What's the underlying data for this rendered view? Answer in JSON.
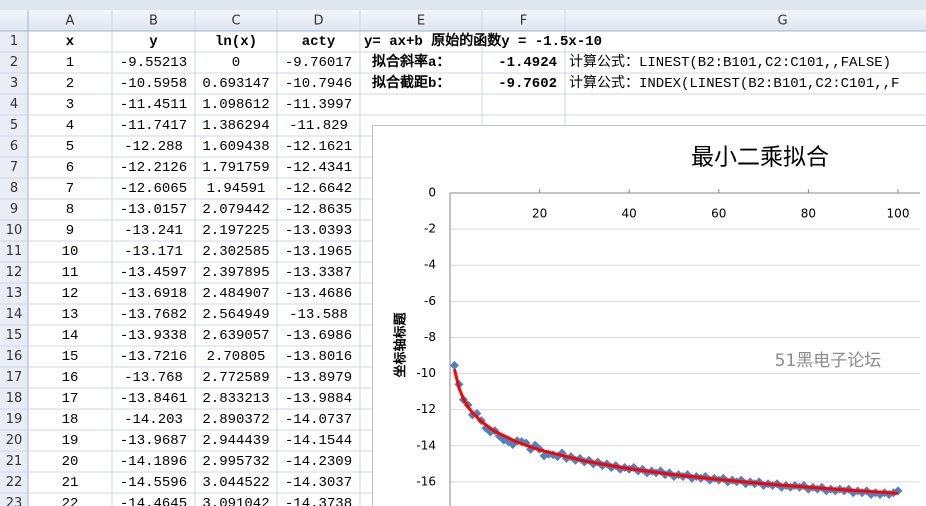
{
  "spreadsheet": {
    "columns": [
      "A",
      "B",
      "C",
      "D",
      "E",
      "F",
      "G"
    ],
    "row_numbers": [
      "1",
      "2",
      "3",
      "4",
      "5",
      "6",
      "7",
      "8",
      "9",
      "10",
      "11",
      "12",
      "13",
      "14",
      "15",
      "16",
      "17",
      "18",
      "19",
      "20",
      "21",
      "22",
      "23"
    ],
    "rows": [
      [
        "x",
        "y",
        "ln(x)",
        "acty"
      ],
      [
        "1",
        "-9.55213",
        "0",
        "-9.76017"
      ],
      [
        "2",
        "-10.5958",
        "0.693147",
        "-10.7946"
      ],
      [
        "3",
        "-11.4511",
        "1.098612",
        "-11.3997"
      ],
      [
        "4",
        "-11.7417",
        "1.386294",
        "-11.829"
      ],
      [
        "5",
        "-12.288",
        "1.609438",
        "-12.1621"
      ],
      [
        "6",
        "-12.2126",
        "1.791759",
        "-12.4341"
      ],
      [
        "7",
        "-12.6065",
        "1.94591",
        "-12.6642"
      ],
      [
        "8",
        "-13.0157",
        "2.079442",
        "-12.8635"
      ],
      [
        "9",
        "-13.241",
        "2.197225",
        "-13.0393"
      ],
      [
        "10",
        "-13.171",
        "2.302585",
        "-13.1965"
      ],
      [
        "11",
        "-13.4597",
        "2.397895",
        "-13.3387"
      ],
      [
        "12",
        "-13.6918",
        "2.484907",
        "-13.4686"
      ],
      [
        "13",
        "-13.7682",
        "2.564949",
        "-13.588"
      ],
      [
        "14",
        "-13.9338",
        "2.639057",
        "-13.6986"
      ],
      [
        "15",
        "-13.7216",
        "2.70805",
        "-13.8016"
      ],
      [
        "16",
        "-13.768",
        "2.772589",
        "-13.8979"
      ],
      [
        "17",
        "-13.8461",
        "2.833213",
        "-13.9884"
      ],
      [
        "18",
        "-14.203",
        "2.890372",
        "-14.0737"
      ],
      [
        "19",
        "-13.9687",
        "2.944439",
        "-14.1544"
      ],
      [
        "20",
        "-14.1896",
        "2.995732",
        "-14.2309"
      ],
      [
        "21",
        "-14.5596",
        "3.044522",
        "-14.3037"
      ],
      [
        "22",
        "-14.4645",
        "3.091042",
        "-14.3738"
      ]
    ],
    "e1": "y= ax+b  原始的函数y = -1.5x-10",
    "fit_rows": [
      {
        "label": "拟合斜率a：",
        "value": "-1.4924",
        "formula": "计算公式：LINEST(B2:B101,C2:C101,,FALSE)"
      },
      {
        "label": "拟合截距b：",
        "value": "-9.7602",
        "formula": "计算公式：INDEX(LINEST(B2:B101,C2:C101,,F"
      }
    ]
  },
  "chart_data": {
    "type": "scatter",
    "title": "最小二乘拟合",
    "y_label": "坐标轴标题",
    "watermark": "51黑电子论坛",
    "xlim": [
      0,
      100
    ],
    "ylim": [
      -18,
      0
    ],
    "xticks": [
      20,
      40,
      60,
      80,
      100
    ],
    "yticks": [
      0,
      -2,
      -4,
      -6,
      -8,
      -10,
      -12,
      -14,
      -16
    ],
    "grid": true,
    "series": [
      {
        "color": "#4f81bd",
        "marker": "diamond",
        "x": [
          1,
          2,
          3,
          4,
          5,
          6,
          7,
          8,
          9,
          10,
          11,
          12,
          13,
          14,
          15,
          16,
          17,
          18,
          19,
          20,
          21,
          22,
          23,
          24,
          25,
          26,
          27,
          28,
          29,
          30,
          31,
          32,
          33,
          34,
          35,
          36,
          37,
          38,
          39,
          40,
          41,
          42,
          43,
          44,
          45,
          46,
          47,
          48,
          49,
          50,
          51,
          52,
          53,
          54,
          55,
          56,
          57,
          58,
          59,
          60,
          61,
          62,
          63,
          64,
          65,
          66,
          67,
          68,
          69,
          70,
          71,
          72,
          73,
          74,
          75,
          76,
          77,
          78,
          79,
          80,
          81,
          82,
          83,
          84,
          85,
          86,
          87,
          88,
          89,
          90,
          91,
          92,
          93,
          94,
          95,
          96,
          97,
          98,
          99,
          100
        ],
        "values": [
          -9.55,
          -10.6,
          -11.45,
          -11.74,
          -12.29,
          -12.21,
          -12.61,
          -13.02,
          -13.24,
          -13.17,
          -13.46,
          -13.69,
          -13.77,
          -13.93,
          -13.72,
          -13.77,
          -13.85,
          -14.2,
          -13.97,
          -14.19,
          -14.56,
          -14.46,
          -14.5,
          -14.6,
          -14.4,
          -14.7,
          -14.6,
          -14.8,
          -14.7,
          -14.9,
          -14.8,
          -15.0,
          -14.9,
          -15.1,
          -15.0,
          -15.2,
          -15.1,
          -15.3,
          -15.2,
          -15.3,
          -15.2,
          -15.4,
          -15.3,
          -15.5,
          -15.4,
          -15.5,
          -15.4,
          -15.6,
          -15.5,
          -15.7,
          -15.6,
          -15.7,
          -15.6,
          -15.8,
          -15.7,
          -15.8,
          -15.7,
          -15.9,
          -15.8,
          -15.9,
          -15.8,
          -16.0,
          -15.9,
          -16.0,
          -15.9,
          -16.1,
          -16.0,
          -16.1,
          -16.0,
          -16.2,
          -16.1,
          -16.2,
          -16.1,
          -16.3,
          -16.2,
          -16.3,
          -16.2,
          -16.3,
          -16.2,
          -16.4,
          -16.3,
          -16.4,
          -16.3,
          -16.5,
          -16.4,
          -16.5,
          -16.4,
          -16.5,
          -16.4,
          -16.6,
          -16.5,
          -16.6,
          -16.5,
          -16.7,
          -16.6,
          -16.7,
          -16.6,
          -16.7,
          -16.6,
          -16.5
        ]
      },
      {
        "color": "#ff0000",
        "marker": "line",
        "x": [
          1,
          2,
          3,
          4,
          5,
          7,
          10,
          15,
          20,
          30,
          40,
          50,
          60,
          70,
          80,
          90,
          100
        ],
        "values": [
          -9.76,
          -10.79,
          -11.4,
          -11.83,
          -12.16,
          -12.66,
          -13.2,
          -13.8,
          -14.23,
          -14.84,
          -15.27,
          -15.6,
          -15.87,
          -16.1,
          -16.3,
          -16.48,
          -16.63
        ]
      }
    ]
  }
}
